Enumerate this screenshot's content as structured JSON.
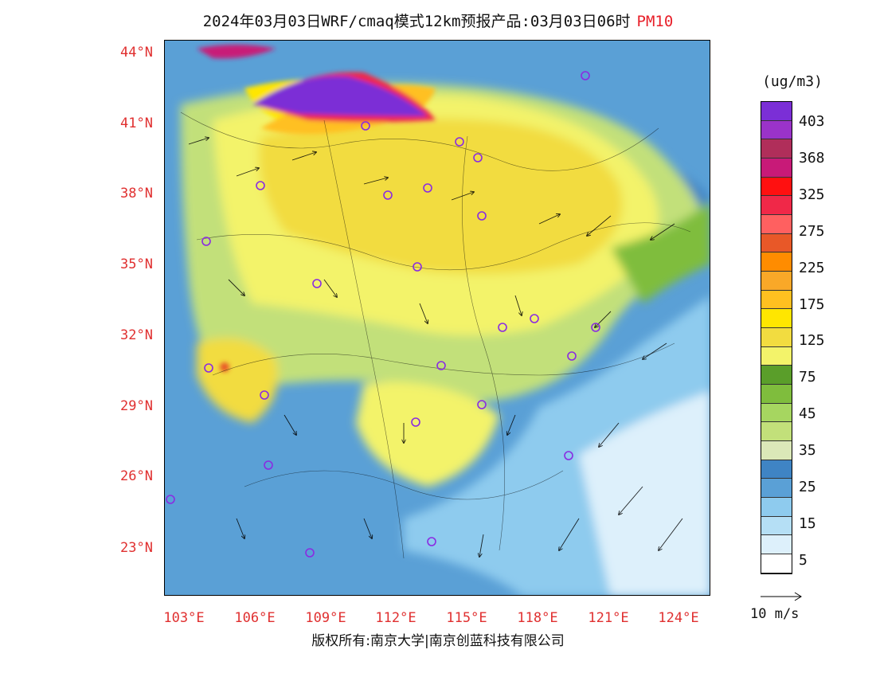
{
  "title": {
    "main": "2024年03月03日WRF/cmaq模式12km预报产品:03月03日06时",
    "pollutant": "PM10"
  },
  "lat_labels": [
    "44°N",
    "41°N",
    "38°N",
    "35°N",
    "32°N",
    "29°N",
    "26°N",
    "23°N"
  ],
  "lon_labels": [
    "103°E",
    "106°E",
    "109°E",
    "112°E",
    "115°E",
    "118°E",
    "121°E",
    "124°E"
  ],
  "colorbar": {
    "unit": "(ug/m3)",
    "labels": [
      "403",
      "368",
      "325",
      "275",
      "225",
      "175",
      "125",
      "75",
      "45",
      "35",
      "25",
      "15",
      "5"
    ],
    "colors": [
      "#7b2fd6",
      "#9a33c9",
      "#b02e5a",
      "#c81a78",
      "#ff1010",
      "#f02848",
      "#ff6060",
      "#e85828",
      "#ff8c00",
      "#f9a828",
      "#ffc020",
      "#ffe600",
      "#f2dc40",
      "#f3f36a",
      "#5a9e2a",
      "#7fbd3d",
      "#a6d660",
      "#c2e07a",
      "#dbe8b8",
      "#3f84c4",
      "#5aa0d6",
      "#8ecbee",
      "#b5dff5",
      "#ddf0fb",
      "#ffffff"
    ]
  },
  "vector_scale": {
    "label": "10 m/s"
  },
  "copyright": "版权所有:南京大学|南京创蓝科技有限公司"
}
